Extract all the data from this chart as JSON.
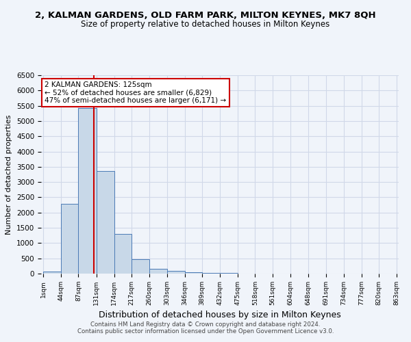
{
  "title": "2, KALMAN GARDENS, OLD FARM PARK, MILTON KEYNES, MK7 8QH",
  "subtitle": "Size of property relative to detached houses in Milton Keynes",
  "xlabel": "Distribution of detached houses by size in Milton Keynes",
  "ylabel": "Number of detached properties",
  "footer_line1": "Contains HM Land Registry data © Crown copyright and database right 2024.",
  "footer_line2": "Contains public sector information licensed under the Open Government Licence v3.0.",
  "annotation_title": "2 KALMAN GARDENS: 125sqm",
  "annotation_line1": "← 52% of detached houses are smaller (6,829)",
  "annotation_line2": "47% of semi-detached houses are larger (6,171) →",
  "property_size_sqm": 125,
  "bar_color": "#c8d8e8",
  "bar_edge_color": "#4a7ab5",
  "vline_color": "#cc0000",
  "annotation_box_color": "#cc0000",
  "grid_color": "#d0d8e8",
  "tick_labels": [
    "1sqm",
    "44sqm",
    "87sqm",
    "131sqm",
    "174sqm",
    "217sqm",
    "260sqm",
    "303sqm",
    "346sqm",
    "389sqm",
    "432sqm",
    "475sqm",
    "518sqm",
    "561sqm",
    "604sqm",
    "648sqm",
    "691sqm",
    "734sqm",
    "777sqm",
    "820sqm",
    "863sqm"
  ],
  "bar_values": [
    75,
    2280,
    5420,
    3370,
    1290,
    475,
    165,
    85,
    55,
    30,
    15,
    8,
    5,
    3,
    2,
    1,
    1,
    0,
    0,
    0
  ],
  "bin_edges": [
    1,
    44,
    87,
    131,
    174,
    217,
    260,
    303,
    346,
    389,
    432,
    475,
    518,
    561,
    604,
    648,
    691,
    734,
    777,
    820,
    863
  ],
  "ylim": [
    0,
    6500
  ],
  "yticks": [
    0,
    500,
    1000,
    1500,
    2000,
    2500,
    3000,
    3500,
    4000,
    4500,
    5000,
    5500,
    6000,
    6500
  ],
  "background_color": "#f0f4fa",
  "axes_background_color": "#f0f4fa"
}
